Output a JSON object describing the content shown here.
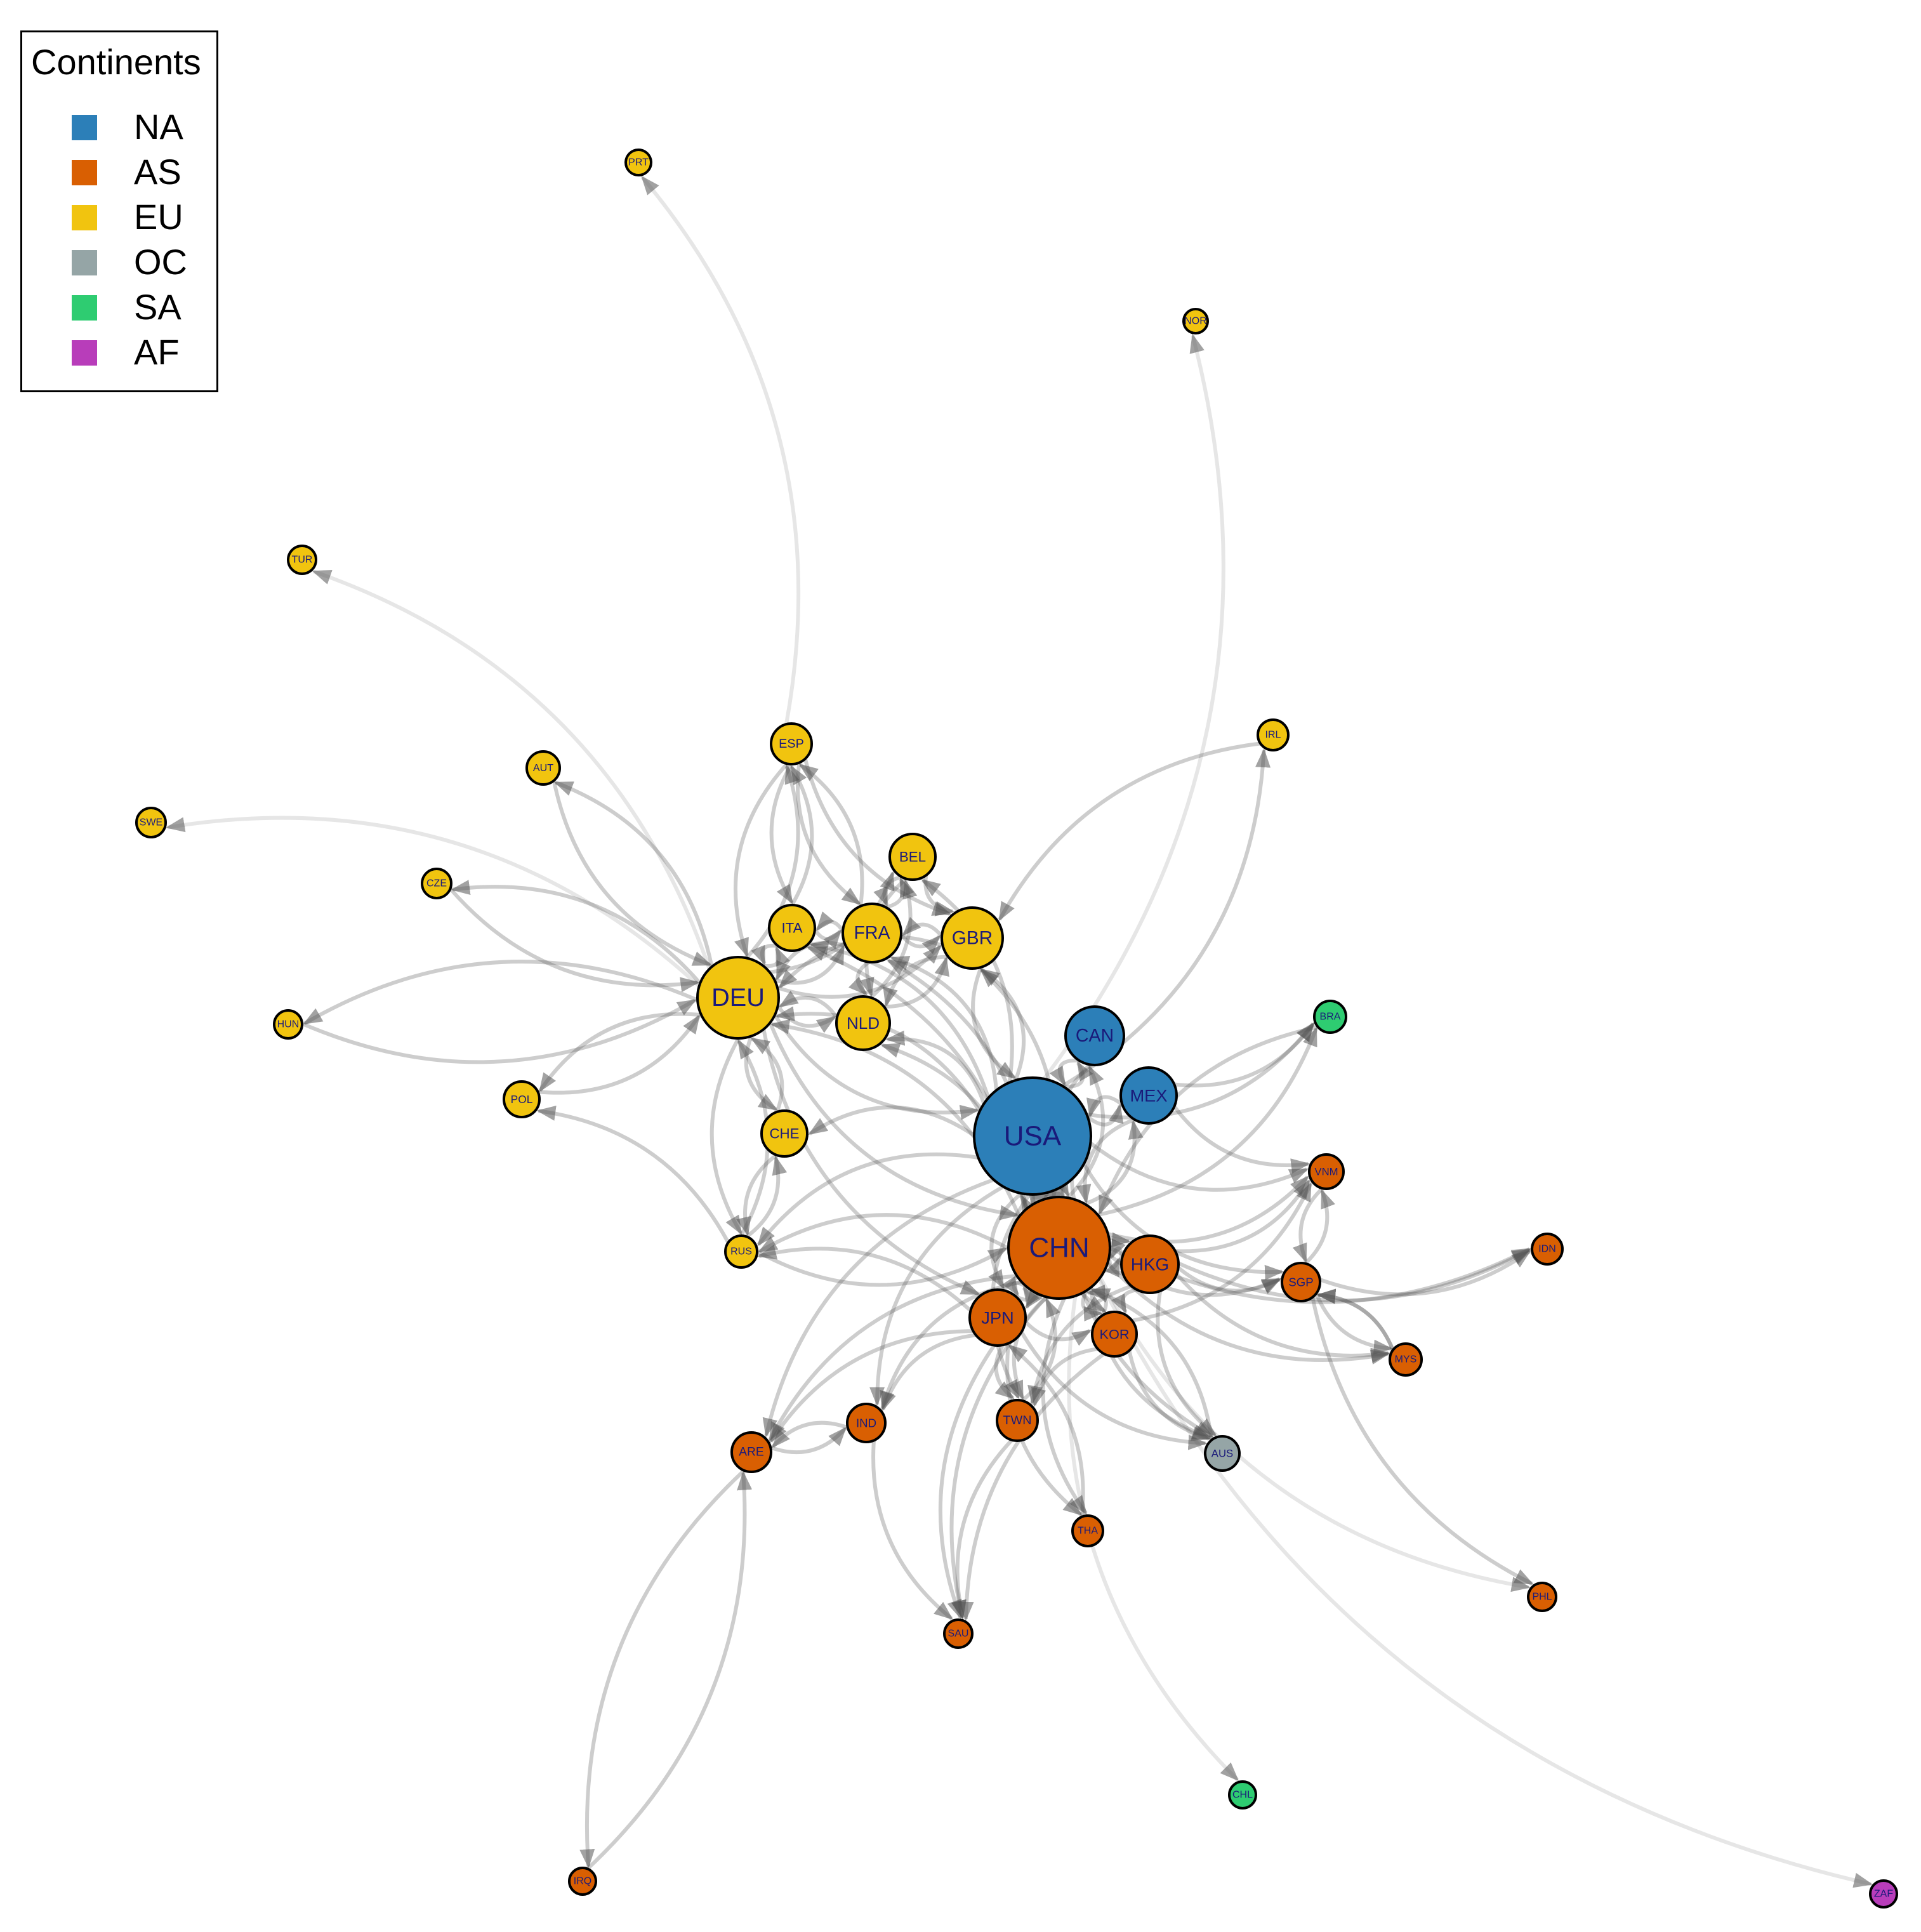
{
  "legend": {
    "title": "Continents",
    "items": [
      {
        "label": "NA",
        "color": "#2C7FB8"
      },
      {
        "label": "AS",
        "color": "#D95F02"
      },
      {
        "label": "EU",
        "color": "#F1C40F"
      },
      {
        "label": "OC",
        "color": "#95A5A6"
      },
      {
        "label": "SA",
        "color": "#2ECC71"
      },
      {
        "label": "AF",
        "color": "#B83DBA"
      }
    ]
  },
  "nodes": [
    {
      "id": "USA",
      "continent": "NA"
    },
    {
      "id": "CHN",
      "continent": "AS"
    },
    {
      "id": "DEU",
      "continent": "EU"
    },
    {
      "id": "CAN",
      "continent": "NA"
    },
    {
      "id": "MEX",
      "continent": "NA"
    },
    {
      "id": "HKG",
      "continent": "AS"
    },
    {
      "id": "JPN",
      "continent": "AS"
    },
    {
      "id": "FRA",
      "continent": "EU"
    },
    {
      "id": "GBR",
      "continent": "EU"
    },
    {
      "id": "NLD",
      "continent": "EU"
    },
    {
      "id": "ITA",
      "continent": "EU"
    },
    {
      "id": "BEL",
      "continent": "EU"
    },
    {
      "id": "ESP",
      "continent": "EU"
    },
    {
      "id": "CHE",
      "continent": "EU"
    },
    {
      "id": "KOR",
      "continent": "AS"
    },
    {
      "id": "TWN",
      "continent": "AS"
    },
    {
      "id": "IND",
      "continent": "AS"
    },
    {
      "id": "ARE",
      "continent": "AS"
    },
    {
      "id": "SGP",
      "continent": "AS"
    },
    {
      "id": "VNM",
      "continent": "AS"
    },
    {
      "id": "MYS",
      "continent": "AS"
    },
    {
      "id": "IDN",
      "continent": "AS"
    },
    {
      "id": "THA",
      "continent": "AS"
    },
    {
      "id": "SAU",
      "continent": "AS"
    },
    {
      "id": "PHL",
      "continent": "AS"
    },
    {
      "id": "IRQ",
      "continent": "AS"
    },
    {
      "id": "RUS",
      "continent": "EU"
    },
    {
      "id": "POL",
      "continent": "EU"
    },
    {
      "id": "HUN",
      "continent": "EU"
    },
    {
      "id": "CZE",
      "continent": "EU"
    },
    {
      "id": "AUT",
      "continent": "EU"
    },
    {
      "id": "SWE",
      "continent": "EU"
    },
    {
      "id": "TUR",
      "continent": "EU"
    },
    {
      "id": "PRT",
      "continent": "EU"
    },
    {
      "id": "NOR",
      "continent": "EU"
    },
    {
      "id": "IRL",
      "continent": "EU"
    },
    {
      "id": "BRA",
      "continent": "SA"
    },
    {
      "id": "CHL",
      "continent": "SA"
    },
    {
      "id": "AUS",
      "continent": "OC"
    },
    {
      "id": "ZAF",
      "continent": "AF"
    }
  ],
  "edges": [
    [
      "USA",
      "CHN"
    ],
    [
      "CHN",
      "USA"
    ],
    [
      "USA",
      "CAN"
    ],
    [
      "CAN",
      "USA"
    ],
    [
      "USA",
      "MEX"
    ],
    [
      "MEX",
      "USA"
    ],
    [
      "CHN",
      "HKG"
    ],
    [
      "HKG",
      "CHN"
    ],
    [
      "CHN",
      "JPN"
    ],
    [
      "JPN",
      "CHN"
    ],
    [
      "CHN",
      "KOR"
    ],
    [
      "KOR",
      "CHN"
    ],
    [
      "CHN",
      "TWN"
    ],
    [
      "TWN",
      "CHN"
    ],
    [
      "USA",
      "JPN"
    ],
    [
      "JPN",
      "USA"
    ],
    [
      "USA",
      "DEU"
    ],
    [
      "DEU",
      "USA"
    ],
    [
      "USA",
      "GBR"
    ],
    [
      "GBR",
      "USA"
    ],
    [
      "USA",
      "FRA"
    ],
    [
      "USA",
      "NLD"
    ],
    [
      "USA",
      "KOR"
    ],
    [
      "USA",
      "HKG"
    ],
    [
      "USA",
      "BRA"
    ],
    [
      "USA",
      "IND"
    ],
    [
      "USA",
      "VNM"
    ],
    [
      "USA",
      "SGP"
    ],
    [
      "USA",
      "ARE"
    ],
    [
      "USA",
      "IRL"
    ],
    [
      "USA",
      "CHE"
    ],
    [
      "USA",
      "ITA"
    ],
    [
      "USA",
      "BEL"
    ],
    [
      "USA",
      "AUS"
    ],
    [
      "USA",
      "TWN"
    ],
    [
      "USA",
      "NOR"
    ],
    [
      "DEU",
      "FRA"
    ],
    [
      "FRA",
      "DEU"
    ],
    [
      "DEU",
      "NLD"
    ],
    [
      "NLD",
      "DEU"
    ],
    [
      "DEU",
      "ITA"
    ],
    [
      "ITA",
      "DEU"
    ],
    [
      "DEU",
      "GBR"
    ],
    [
      "GBR",
      "DEU"
    ],
    [
      "DEU",
      "BEL"
    ],
    [
      "DEU",
      "ESP"
    ],
    [
      "ESP",
      "DEU"
    ],
    [
      "DEU",
      "CHE"
    ],
    [
      "CHE",
      "DEU"
    ],
    [
      "DEU",
      "AUT"
    ],
    [
      "AUT",
      "DEU"
    ],
    [
      "DEU",
      "POL"
    ],
    [
      "POL",
      "DEU"
    ],
    [
      "DEU",
      "CZE"
    ],
    [
      "CZE",
      "DEU"
    ],
    [
      "DEU",
      "HUN"
    ],
    [
      "HUN",
      "DEU"
    ],
    [
      "DEU",
      "SWE"
    ],
    [
      "DEU",
      "TUR"
    ],
    [
      "DEU",
      "RUS"
    ],
    [
      "RUS",
      "DEU"
    ],
    [
      "DEU",
      "CHN"
    ],
    [
      "CHN",
      "DEU"
    ],
    [
      "DEU",
      "JPN"
    ],
    [
      "FRA",
      "ESP"
    ],
    [
      "ESP",
      "FRA"
    ],
    [
      "FRA",
      "ITA"
    ],
    [
      "ITA",
      "FRA"
    ],
    [
      "FRA",
      "BEL"
    ],
    [
      "BEL",
      "FRA"
    ],
    [
      "FRA",
      "GBR"
    ],
    [
      "GBR",
      "FRA"
    ],
    [
      "FRA",
      "NLD"
    ],
    [
      "NLD",
      "BEL"
    ],
    [
      "BEL",
      "NLD"
    ],
    [
      "NLD",
      "GBR"
    ],
    [
      "GBR",
      "NLD"
    ],
    [
      "ESP",
      "PRT"
    ],
    [
      "ESP",
      "ITA"
    ],
    [
      "ESP",
      "GBR"
    ],
    [
      "ITA",
      "ESP"
    ],
    [
      "BEL",
      "GBR"
    ],
    [
      "CHN",
      "RUS"
    ],
    [
      "RUS",
      "CHN"
    ],
    [
      "CHN",
      "IND"
    ],
    [
      "CHN",
      "ARE"
    ],
    [
      "CHN",
      "VNM"
    ],
    [
      "CHN",
      "SGP"
    ],
    [
      "CHN",
      "MYS"
    ],
    [
      "CHN",
      "IDN"
    ],
    [
      "CHN",
      "THA"
    ],
    [
      "CHN",
      "SAU"
    ],
    [
      "CHN",
      "AUS"
    ],
    [
      "AUS",
      "CHN"
    ],
    [
      "CHN",
      "BRA"
    ],
    [
      "BRA",
      "CHN"
    ],
    [
      "CHN",
      "GBR"
    ],
    [
      "CHN",
      "NLD"
    ],
    [
      "CHN",
      "FRA"
    ],
    [
      "CHN",
      "ITA"
    ],
    [
      "CHN",
      "CHL"
    ],
    [
      "CHN",
      "ZAF"
    ],
    [
      "CHN",
      "PHL"
    ],
    [
      "HKG",
      "SGP"
    ],
    [
      "HKG",
      "VNM"
    ],
    [
      "HKG",
      "MYS"
    ],
    [
      "HKG",
      "IDN"
    ],
    [
      "HKG",
      "JPN"
    ],
    [
      "HKG",
      "KOR"
    ],
    [
      "HKG",
      "TWN"
    ],
    [
      "HKG",
      "AUS"
    ],
    [
      "JPN",
      "KOR"
    ],
    [
      "JPN",
      "TWN"
    ],
    [
      "JPN",
      "THA"
    ],
    [
      "JPN",
      "IND"
    ],
    [
      "JPN",
      "ARE"
    ],
    [
      "JPN",
      "SAU"
    ],
    [
      "KOR",
      "TWN"
    ],
    [
      "KOR",
      "VNM"
    ],
    [
      "KOR",
      "SAU"
    ],
    [
      "TWN",
      "SAU"
    ],
    [
      "IND",
      "ARE"
    ],
    [
      "ARE",
      "IND"
    ],
    [
      "ARE",
      "IRQ"
    ],
    [
      "IRQ",
      "ARE"
    ],
    [
      "SGP",
      "MYS"
    ],
    [
      "MYS",
      "SGP"
    ],
    [
      "SGP",
      "IDN"
    ],
    [
      "SGP",
      "PHL"
    ],
    [
      "MYS",
      "SGP"
    ],
    [
      "RUS",
      "POL"
    ],
    [
      "RUS",
      "CHE"
    ],
    [
      "CHE",
      "RUS"
    ],
    [
      "JPN",
      "RUS"
    ],
    [
      "IND",
      "SAU"
    ],
    [
      "MEX",
      "BRA"
    ],
    [
      "MEX",
      "VNM"
    ],
    [
      "CAN",
      "CHN"
    ],
    [
      "CHN",
      "CAN"
    ],
    [
      "MEX",
      "CHN"
    ],
    [
      "CHN",
      "MEX"
    ],
    [
      "IRL",
      "GBR"
    ],
    [
      "USA",
      "RUS"
    ],
    [
      "KOR",
      "AUS"
    ],
    [
      "JPN",
      "AUS"
    ],
    [
      "THA",
      "JPN"
    ],
    [
      "SGP",
      "VNM"
    ],
    [
      "VNM",
      "SGP"
    ]
  ]
}
